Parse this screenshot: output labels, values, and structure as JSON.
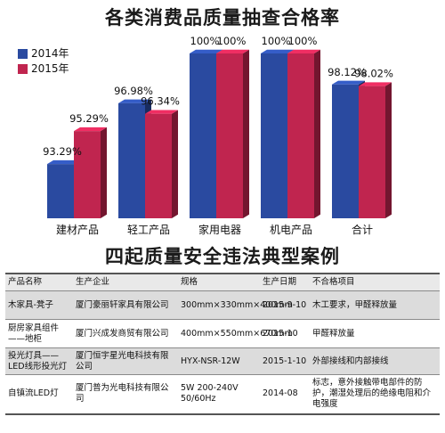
{
  "chart_data": {
    "type": "bar",
    "title": "各类消费品质量抽查合格率",
    "categories": [
      "建材产品",
      "轻工产品",
      "家用电器",
      "机电产品",
      "合计"
    ],
    "series": [
      {
        "name": "2014年",
        "color": "#2a4aa0",
        "values": [
          93.29,
          96.98,
          100,
          100,
          98.12
        ],
        "labels": [
          "93.29%",
          "96.98%",
          "100%",
          "100%",
          "98.12%"
        ]
      },
      {
        "name": "2015年",
        "color": "#c0254f",
        "values": [
          95.29,
          96.34,
          100,
          100,
          98.02
        ],
        "labels": [
          "95.29%",
          "96.34%",
          "100%",
          "100%",
          "98.02%"
        ]
      }
    ],
    "legend_position": "top-left",
    "grid": false
  },
  "table": {
    "title": "四起质量安全违法典型案例",
    "headers": [
      "产品名称",
      "生产企业",
      "规格",
      "生产日期",
      "不合格项目"
    ],
    "rows": [
      [
        "木家具-凳子",
        "厦门豪丽轩家具有限公司",
        "300mm×330mm×400mm",
        "2015-9-10",
        "木工要求，甲醛释放量"
      ],
      [
        "厨房家具组件——地柜",
        "厦门兴成发商贸有限公司",
        "400mm×550mm×670mm",
        "2015-10",
        "甲醛释放量"
      ],
      [
        "投光灯具——LED线形投光灯",
        "厦门恒宇星光电科技有限公司",
        "HYX-NSR-12W",
        "2015-1-10",
        "外部接线和内部接线"
      ],
      [
        "自镇流LED灯",
        "厦门普为光电科技有限公司",
        "5W  200-240V 50/60Hz",
        "2014-08",
        "标志，意外接触带电部件的防护，潮湿处理后的绝缘电阻和介电强度"
      ]
    ]
  }
}
